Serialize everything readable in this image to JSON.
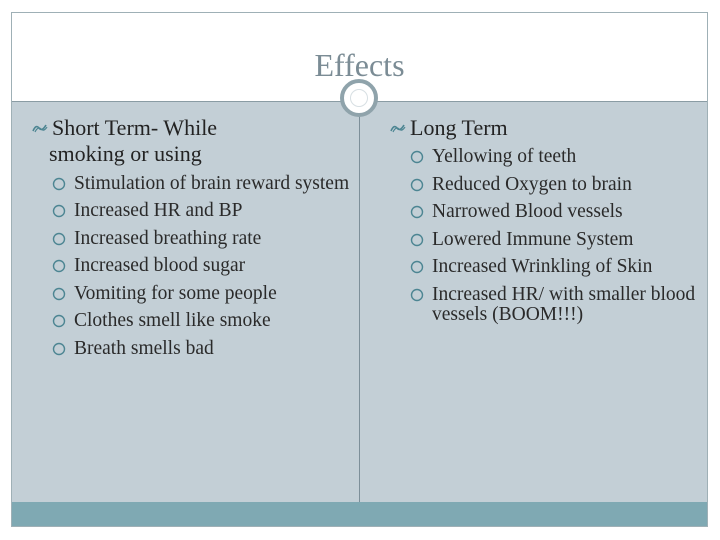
{
  "slide": {
    "title": "Effects"
  },
  "left_column": {
    "heading_line1": "Short Term- While",
    "heading_line2": "smoking or using",
    "items": [
      "Stimulation of brain reward system",
      "Increased HR and BP",
      "Increased breathing rate",
      "Increased blood sugar",
      "Vomiting for some people",
      "Clothes smell like smoke",
      "Breath smells bad"
    ]
  },
  "right_column": {
    "heading": "Long Term",
    "items": [
      "Yellowing of teeth",
      "Reduced Oxygen to brain",
      "Narrowed Blood vessels",
      "Lowered Immune System",
      "Increased Wrinkling of Skin",
      "Increased HR/ with smaller blood vessels (BOOM!!!)"
    ]
  },
  "colors": {
    "title": "#7b8c95",
    "content_bg": "#c3cfd6",
    "footer_bar": "#7fa9b3",
    "accent": "#4c8592"
  },
  "icons": {
    "heading_bullet": "wave-bullet-icon",
    "sub_bullet": "circle-bullet-icon"
  }
}
